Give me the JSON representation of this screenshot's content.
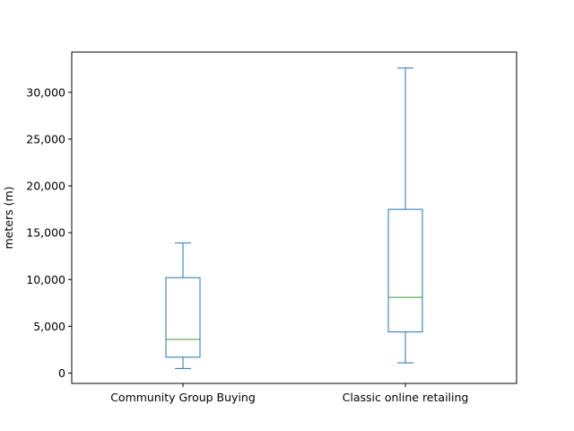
{
  "chart_data": {
    "type": "box",
    "title": "",
    "xlabel": "",
    "ylabel": "meters (m)",
    "ylim": [
      -1100,
      34300
    ],
    "yticks": [
      0,
      5000,
      10000,
      15000,
      20000,
      25000,
      30000
    ],
    "ytick_labels": [
      "0",
      "5,000",
      "10,000",
      "15,000",
      "20,000",
      "25,000",
      "30,000"
    ],
    "grid": false,
    "legend": "none",
    "categories": [
      "Community Group Buying",
      "Classic online retailing"
    ],
    "boxes": [
      {
        "name": "Community Group Buying",
        "whisker_low": 500,
        "q1": 1700,
        "median": 3600,
        "q3": 10200,
        "whisker_high": 13900
      },
      {
        "name": "Classic online retailing",
        "whisker_low": 1100,
        "q1": 4400,
        "median": 8100,
        "q3": 17500,
        "whisker_high": 32600
      }
    ],
    "colors": {
      "box": "#1f77b4",
      "median": "#2ca02c",
      "axis": "#000000"
    }
  }
}
